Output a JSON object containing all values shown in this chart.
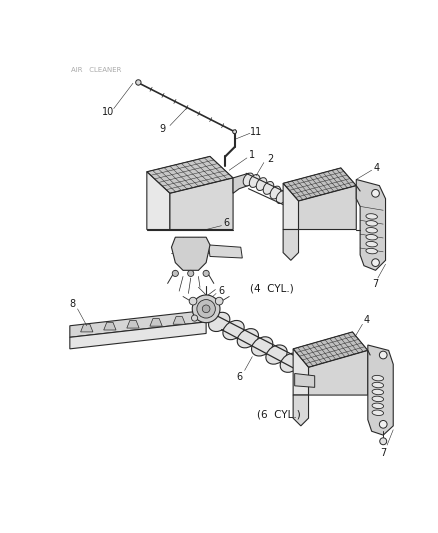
{
  "bg_color": "#ffffff",
  "line_color": "#2a2a2a",
  "fill_light": "#f0f0f0",
  "fill_mid": "#d8d8d8",
  "fill_dark": "#b8b8b8",
  "header_color": "#999999",
  "label_color": "#1a1a1a",
  "annotation_4cyl": "(4  CYL.)",
  "annotation_6cyl": "(6  CYL.)",
  "figsize": [
    4.39,
    5.33
  ],
  "dpi": 100
}
